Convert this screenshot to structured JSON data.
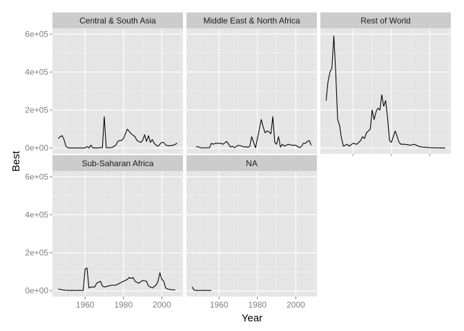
{
  "chart_data": {
    "type": "line",
    "facet": "panel",
    "xlabel": "Year",
    "ylabel": "Best",
    "xlim": [
      1943,
      2011
    ],
    "ylim": [
      -30000,
      630000
    ],
    "x_ticks": [
      1960,
      1980,
      2000
    ],
    "x_tick_labels": [
      "1960",
      "1980",
      "2000"
    ],
    "y_ticks": [
      0,
      200000,
      400000,
      600000
    ],
    "y_tick_labels": [
      "0e+00",
      "2e+05",
      "4e+05",
      "6e+05"
    ],
    "grid": true,
    "panels": [
      {
        "name": "Central & South Asia",
        "x": [
          1946,
          1947,
          1948,
          1949,
          1950,
          1951,
          1952,
          1955,
          1958,
          1960,
          1961,
          1962,
          1963,
          1964,
          1965,
          1967,
          1968,
          1969,
          1970,
          1971,
          1972,
          1974,
          1976,
          1977,
          1978,
          1979,
          1980,
          1982,
          1984,
          1986,
          1987,
          1988,
          1989,
          1990,
          1991,
          1992,
          1993,
          1994,
          1995,
          1996,
          1997,
          1998,
          1999,
          2000,
          2001,
          2002,
          2004,
          2006,
          2008
        ],
        "values": [
          50000,
          60000,
          65000,
          45000,
          10000,
          2000,
          500,
          500,
          500,
          500,
          8000,
          1000,
          15000,
          1000,
          500,
          500,
          3000,
          2000,
          165000,
          2000,
          2000,
          3000,
          15000,
          35000,
          40000,
          40000,
          50000,
          100000,
          75000,
          60000,
          40000,
          35000,
          30000,
          40000,
          70000,
          35000,
          65000,
          30000,
          45000,
          25000,
          15000,
          10000,
          20000,
          30000,
          30000,
          15000,
          12000,
          15000,
          25000
        ]
      },
      {
        "name": "Middle East & North Africa",
        "x": [
          1948,
          1949,
          1950,
          1952,
          1955,
          1956,
          1957,
          1958,
          1961,
          1962,
          1964,
          1966,
          1967,
          1968,
          1970,
          1972,
          1973,
          1974,
          1975,
          1976,
          1977,
          1979,
          1980,
          1981,
          1982,
          1983,
          1984,
          1985,
          1986,
          1987,
          1988,
          1989,
          1990,
          1991,
          1992,
          1993,
          1994,
          1996,
          1998,
          2000,
          2002,
          2003,
          2004,
          2005,
          2006,
          2007,
          2008
        ],
        "values": [
          5000,
          8000,
          2000,
          1000,
          2000,
          25000,
          20000,
          25000,
          25000,
          20000,
          35000,
          5000,
          10000,
          2000,
          15000,
          10000,
          5000,
          8000,
          3000,
          10000,
          60000,
          2000,
          50000,
          100000,
          150000,
          110000,
          80000,
          90000,
          85000,
          75000,
          165000,
          30000,
          20000,
          60000,
          5000,
          20000,
          10000,
          20000,
          15000,
          15000,
          2000,
          10000,
          25000,
          25000,
          35000,
          40000,
          15000
        ]
      },
      {
        "name": "Rest of World",
        "x": [
          1946,
          1947,
          1948,
          1949,
          1950,
          1951,
          1952,
          1953,
          1954,
          1955,
          1957,
          1958,
          1960,
          1962,
          1964,
          1965,
          1966,
          1967,
          1968,
          1969,
          1970,
          1971,
          1972,
          1973,
          1974,
          1975,
          1976,
          1977,
          1978,
          1979,
          1980,
          1981,
          1982,
          1984,
          1985,
          1987,
          1990,
          1992,
          1994,
          1996,
          1998,
          2000,
          2004,
          2008
        ],
        "values": [
          250000,
          350000,
          400000,
          420000,
          590000,
          400000,
          150000,
          120000,
          50000,
          10000,
          20000,
          10000,
          25000,
          20000,
          40000,
          60000,
          50000,
          80000,
          90000,
          100000,
          200000,
          150000,
          190000,
          210000,
          200000,
          280000,
          220000,
          250000,
          160000,
          40000,
          30000,
          60000,
          90000,
          30000,
          20000,
          20000,
          15000,
          20000,
          10000,
          5000,
          4000,
          2000,
          1000,
          500
        ]
      },
      {
        "name": "Sub-Saharan Africa",
        "x": [
          1946,
          1948,
          1950,
          1952,
          1955,
          1957,
          1958,
          1959,
          1960,
          1961,
          1962,
          1963,
          1965,
          1966,
          1967,
          1968,
          1969,
          1970,
          1972,
          1974,
          1976,
          1978,
          1980,
          1982,
          1983,
          1984,
          1985,
          1986,
          1988,
          1990,
          1992,
          1993,
          1995,
          1997,
          1998,
          1999,
          2000,
          2001,
          2002,
          2003,
          2005,
          2007
        ],
        "values": [
          10000,
          5000,
          3000,
          2000,
          2000,
          3000,
          2000,
          2000,
          115000,
          120000,
          15000,
          20000,
          20000,
          40000,
          45000,
          50000,
          25000,
          20000,
          25000,
          30000,
          30000,
          40000,
          50000,
          60000,
          70000,
          65000,
          70000,
          50000,
          40000,
          55000,
          50000,
          25000,
          15000,
          30000,
          50000,
          95000,
          60000,
          50000,
          15000,
          10000,
          5000,
          5000
        ]
      },
      {
        "name": "NA",
        "x": [
          1946,
          1947,
          1948,
          1950,
          1952,
          1954,
          1956
        ],
        "values": [
          20000,
          4000,
          2000,
          2000,
          2000,
          2000,
          2000
        ]
      }
    ]
  }
}
